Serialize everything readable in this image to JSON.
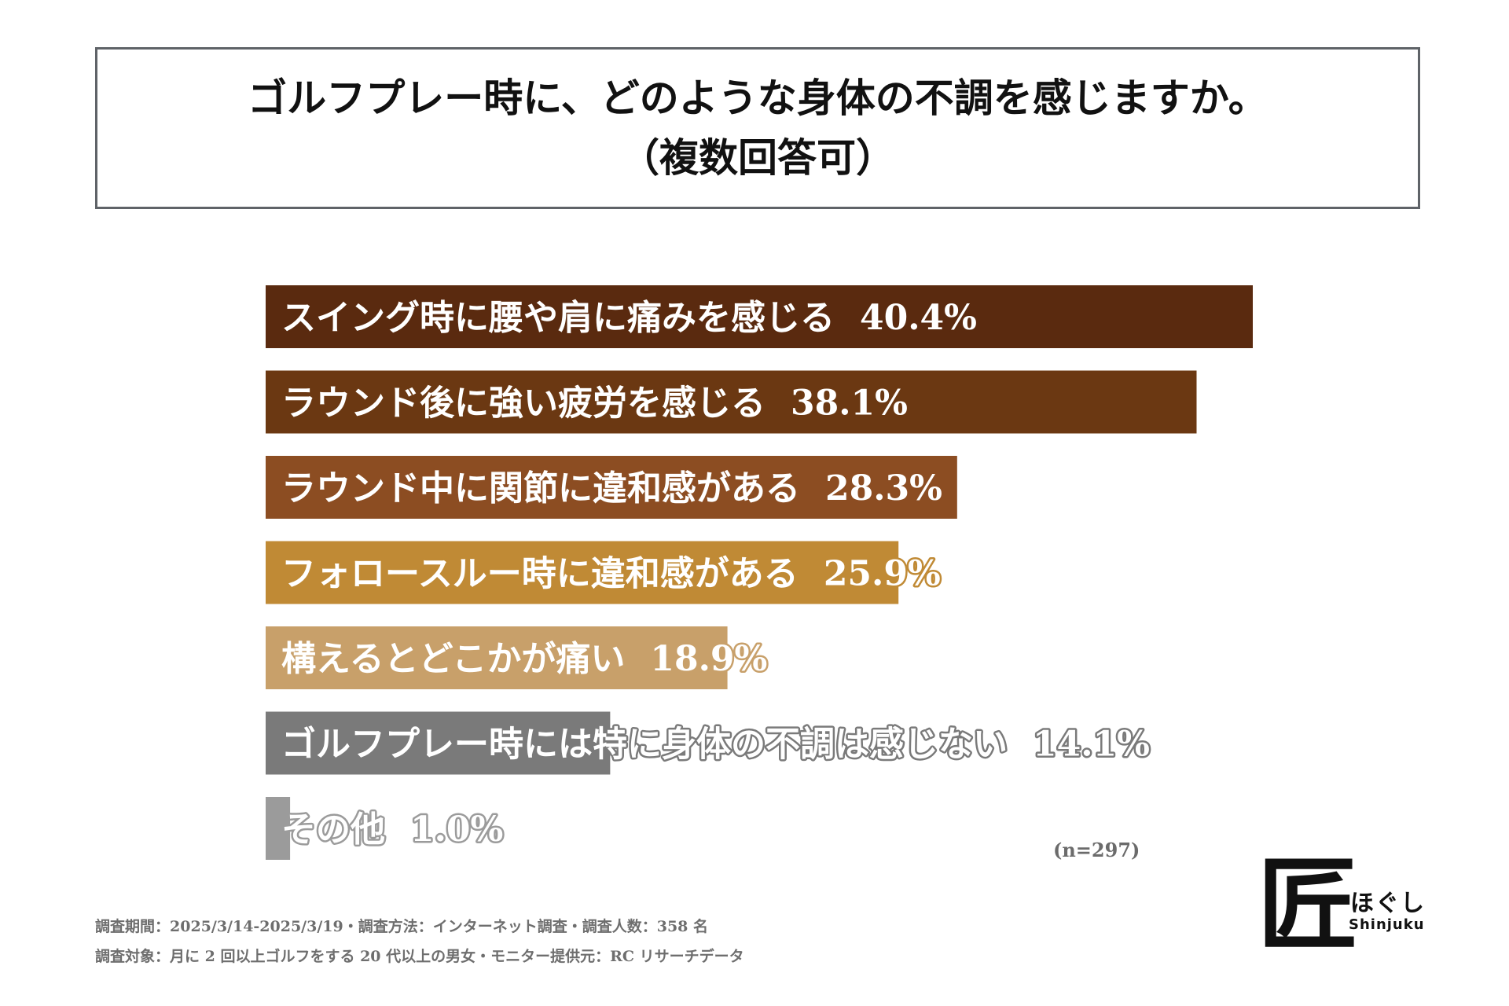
{
  "title": {
    "line1": "ゴルフプレー時に、どのような身体の不調を感じますか。",
    "line2": "（複数回答可）"
  },
  "chart_data": {
    "type": "bar",
    "orientation": "horizontal",
    "title": "ゴルフプレー時に、どのような身体の不調を感じますか。（複数回答可）",
    "categories": [
      "スイング時に腰や肩に痛みを感じる",
      "ラウンド後に強い疲労を感じる",
      "ラウンド中に関節に違和感がある",
      "フォロースルー時に違和感がある",
      "構えるとどこかが痛い",
      "ゴルフプレー時には特に身体の不調は感じない",
      "その他"
    ],
    "values": [
      40.4,
      38.1,
      28.3,
      25.9,
      18.9,
      14.1,
      1.0
    ],
    "value_labels": [
      "40.4%",
      "38.1%",
      "28.3%",
      "25.9%",
      "18.9%",
      "14.1%",
      "1.0%"
    ],
    "colors": [
      "#5a2a0f",
      "#6b3812",
      "#8c4d22",
      "#c08a35",
      "#c8a06a",
      "#7a7a7a",
      "#9b9b9b"
    ],
    "xlabel": "",
    "ylabel": "",
    "unit": "%",
    "xlim": [
      0,
      40.4
    ]
  },
  "sample_note": "(n=297)",
  "footnotes": [
    "調査期間：2025/3/14-2025/3/19・調査方法：インターネット調査・調査人数：358 名",
    "調査対象：月に 2 回以上ゴルフをする 20 代以上の男女・モニター提供元：RC リサーチデータ"
  ],
  "logo": {
    "mark": "匠",
    "sub": "ほぐし",
    "city": "Shinjuku"
  }
}
